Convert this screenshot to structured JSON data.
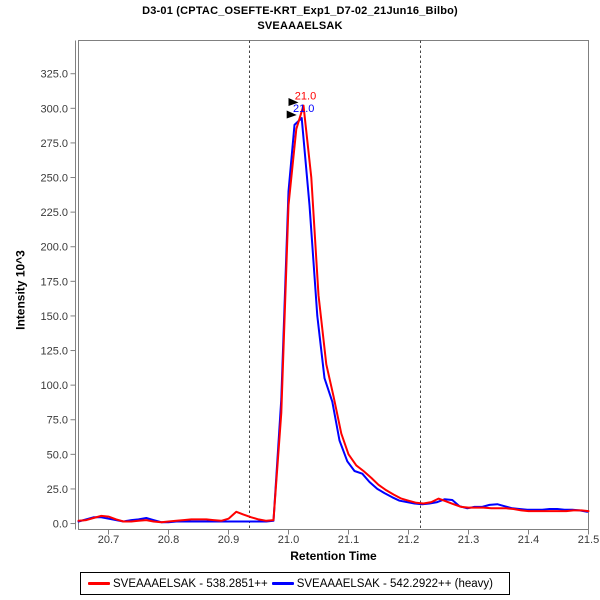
{
  "chart_data": {
    "type": "line",
    "title": "D3-01 (CPTAC_OSEFTE-KRT_Exp1_D7-02_21Jun16_Bilbo)",
    "subtitle": "SVEAAAELSAK",
    "xlabel": "Retention Time",
    "ylabel": "Intensity 10^3",
    "grid": false,
    "legend_position": "bottom",
    "x_range": [
      20.65,
      21.5
    ],
    "y_range": [
      -4.3,
      349
    ],
    "x_ticks": {
      "values": [
        20.7,
        20.8,
        20.9,
        21.0,
        21.1,
        21.2,
        21.3,
        21.4,
        21.5
      ],
      "labels": [
        "20.7",
        "20.8",
        "20.9",
        "21.0",
        "21.1",
        "21.2",
        "21.3",
        "21.4",
        "21.5"
      ]
    },
    "y_ticks": {
      "values": [
        0,
        25,
        50,
        75,
        100,
        125,
        150,
        175,
        200,
        225,
        250,
        275,
        300,
        325
      ],
      "labels": [
        "0.0",
        "25.0",
        "50.0",
        "75.0",
        "100.0",
        "125.0",
        "150.0",
        "175.0",
        "200.0",
        "225.0",
        "250.0",
        "275.0",
        "300.0",
        "325.0"
      ]
    },
    "integration_boundaries": [
      20.935,
      21.22
    ],
    "annotations": [
      {
        "text": "21.0",
        "color": "#ff0000",
        "rt": 21.025,
        "intensity": 302
      },
      {
        "text": "21.0",
        "color": "#0000ff",
        "rt": 21.022,
        "intensity": 293
      }
    ],
    "series": [
      {
        "name": "SVEAAAELSAK - 538.2851++",
        "color": "#ff0000",
        "points": [
          [
            20.65,
            2
          ],
          [
            20.663,
            2.5
          ],
          [
            20.675,
            4
          ],
          [
            20.688,
            5.5
          ],
          [
            20.7,
            5
          ],
          [
            20.713,
            3
          ],
          [
            20.725,
            1.5
          ],
          [
            20.738,
            1.5
          ],
          [
            20.75,
            2
          ],
          [
            20.763,
            2.5
          ],
          [
            20.775,
            1.5
          ],
          [
            20.788,
            1
          ],
          [
            20.8,
            1.5
          ],
          [
            20.813,
            2
          ],
          [
            20.825,
            2.5
          ],
          [
            20.838,
            3
          ],
          [
            20.85,
            3
          ],
          [
            20.863,
            3
          ],
          [
            20.875,
            2.5
          ],
          [
            20.888,
            2
          ],
          [
            20.9,
            3.5
          ],
          [
            20.913,
            8.5
          ],
          [
            20.925,
            6.5
          ],
          [
            20.938,
            4.5
          ],
          [
            20.95,
            3
          ],
          [
            20.963,
            2
          ],
          [
            20.975,
            2.5
          ],
          [
            20.988,
            80
          ],
          [
            21.0,
            230
          ],
          [
            21.013,
            285
          ],
          [
            21.025,
            302
          ],
          [
            21.038,
            250
          ],
          [
            21.05,
            165
          ],
          [
            21.063,
            115
          ],
          [
            21.075,
            92
          ],
          [
            21.088,
            65
          ],
          [
            21.1,
            50
          ],
          [
            21.113,
            42
          ],
          [
            21.125,
            38
          ],
          [
            21.138,
            33
          ],
          [
            21.15,
            28
          ],
          [
            21.163,
            24
          ],
          [
            21.175,
            21
          ],
          [
            21.188,
            18
          ],
          [
            21.2,
            16.5
          ],
          [
            21.213,
            15
          ],
          [
            21.225,
            14.5
          ],
          [
            21.238,
            15.5
          ],
          [
            21.25,
            18
          ],
          [
            21.263,
            16
          ],
          [
            21.275,
            14
          ],
          [
            21.288,
            12
          ],
          [
            21.3,
            11.5
          ],
          [
            21.313,
            11.5
          ],
          [
            21.325,
            11.5
          ],
          [
            21.338,
            11
          ],
          [
            21.35,
            11
          ],
          [
            21.363,
            11
          ],
          [
            21.375,
            10.5
          ],
          [
            21.388,
            9.5
          ],
          [
            21.4,
            9
          ],
          [
            21.413,
            9
          ],
          [
            21.425,
            9
          ],
          [
            21.438,
            9
          ],
          [
            21.45,
            9
          ],
          [
            21.463,
            9
          ],
          [
            21.475,
            9.5
          ],
          [
            21.488,
            9.5
          ],
          [
            21.5,
            9
          ]
        ]
      },
      {
        "name": "SVEAAAELSAK - 542.2922++ (heavy)",
        "color": "#0000ff",
        "points": [
          [
            20.65,
            1.5
          ],
          [
            20.663,
            3
          ],
          [
            20.675,
            4.5
          ],
          [
            20.688,
            4.5
          ],
          [
            20.7,
            3.5
          ],
          [
            20.713,
            2.5
          ],
          [
            20.725,
            1.5
          ],
          [
            20.738,
            2.5
          ],
          [
            20.75,
            3
          ],
          [
            20.763,
            4
          ],
          [
            20.775,
            2.5
          ],
          [
            20.788,
            1
          ],
          [
            20.8,
            1
          ],
          [
            20.813,
            1.5
          ],
          [
            20.825,
            1.5
          ],
          [
            20.838,
            1.5
          ],
          [
            20.85,
            1.5
          ],
          [
            20.863,
            1.5
          ],
          [
            20.875,
            1.5
          ],
          [
            20.888,
            1.5
          ],
          [
            20.9,
            1.5
          ],
          [
            20.913,
            1.5
          ],
          [
            20.925,
            1.5
          ],
          [
            20.938,
            1.5
          ],
          [
            20.95,
            1.5
          ],
          [
            20.963,
            1.5
          ],
          [
            20.975,
            2
          ],
          [
            20.988,
            90
          ],
          [
            21.0,
            240
          ],
          [
            21.01,
            288
          ],
          [
            21.022,
            293
          ],
          [
            21.035,
            230
          ],
          [
            21.048,
            150
          ],
          [
            21.06,
            105
          ],
          [
            21.073,
            88
          ],
          [
            21.085,
            60
          ],
          [
            21.098,
            45
          ],
          [
            21.11,
            38
          ],
          [
            21.123,
            36
          ],
          [
            21.135,
            30
          ],
          [
            21.148,
            25
          ],
          [
            21.16,
            22
          ],
          [
            21.173,
            19
          ],
          [
            21.185,
            16.5
          ],
          [
            21.198,
            15.5
          ],
          [
            21.21,
            14.5
          ],
          [
            21.223,
            14
          ],
          [
            21.235,
            14.5
          ],
          [
            21.248,
            15.5
          ],
          [
            21.26,
            17.5
          ],
          [
            21.273,
            17
          ],
          [
            21.285,
            12.5
          ],
          [
            21.298,
            11
          ],
          [
            21.31,
            12
          ],
          [
            21.323,
            12
          ],
          [
            21.335,
            13.5
          ],
          [
            21.348,
            14
          ],
          [
            21.36,
            12.5
          ],
          [
            21.373,
            11
          ],
          [
            21.385,
            10.5
          ],
          [
            21.398,
            10
          ],
          [
            21.41,
            10
          ],
          [
            21.423,
            10
          ],
          [
            21.435,
            10.5
          ],
          [
            21.448,
            10.5
          ],
          [
            21.46,
            10
          ],
          [
            21.473,
            10
          ],
          [
            21.485,
            9.5
          ],
          [
            21.498,
            8.5
          ]
        ]
      }
    ]
  },
  "styles": {
    "frame_color": "#808080",
    "tick_text_color": "#3a3a3a",
    "boundary_color": "#444444",
    "annotation_arrow_color": "#000000",
    "background": "#ffffff"
  }
}
